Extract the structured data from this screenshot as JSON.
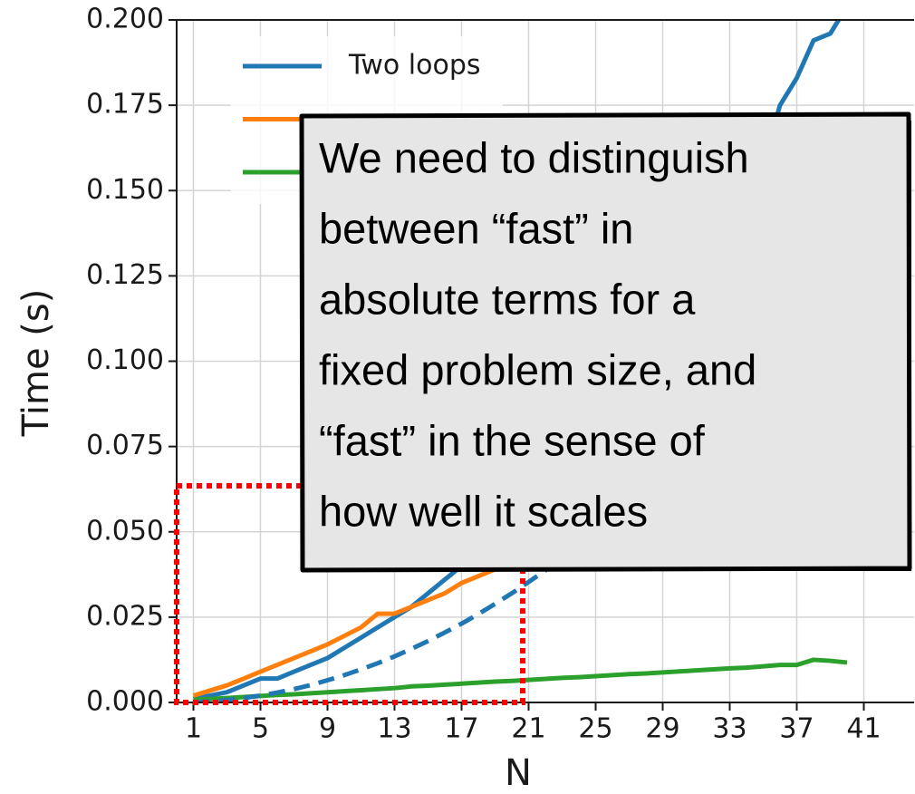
{
  "chart_data": {
    "type": "line",
    "xlabel": "N",
    "ylabel": "Time (s)",
    "x": [
      1,
      2,
      3,
      4,
      5,
      6,
      7,
      8,
      9,
      10,
      11,
      12,
      13,
      14,
      15,
      16,
      17,
      18,
      19,
      20,
      21,
      22,
      23,
      24,
      25,
      26,
      27,
      28,
      29,
      30,
      31,
      32,
      33,
      34,
      35,
      36,
      37,
      38,
      39,
      40
    ],
    "series": [
      {
        "name": "Two loops",
        "color": "#1f77b4",
        "linestyle": "solid",
        "values": [
          0.001,
          0.002,
          0.003,
          0.005,
          0.007,
          0.007,
          0.009,
          0.011,
          0.013,
          0.016,
          0.019,
          0.022,
          0.025,
          0.028,
          0.032,
          0.036,
          0.04,
          0.044,
          0.048,
          0.052,
          0.057,
          0.062,
          0.067,
          0.073,
          0.079,
          0.085,
          0.091,
          0.098,
          0.105,
          0.112,
          0.12,
          0.128,
          0.136,
          0.145,
          0.158,
          0.175,
          0.183,
          0.194,
          0.196,
          0.204
        ]
      },
      {
        "color": "#ff7f0e",
        "linestyle": "solid",
        "values": [
          0.002,
          0.0035,
          0.005,
          0.007,
          0.009,
          0.011,
          0.013,
          0.015,
          0.017,
          0.0195,
          0.022,
          0.026,
          0.026,
          0.028,
          0.03,
          0.032,
          0.035,
          0.037,
          0.039,
          0.041,
          0.043,
          0.045,
          0.047,
          0.049,
          0.051,
          0.053,
          0.055,
          0.057,
          0.059,
          0.061,
          0.063,
          0.065,
          0.067,
          0.069,
          0.071,
          0.073,
          0.075,
          0.077,
          0.079,
          0.081
        ]
      },
      {
        "color": "#2ca02c",
        "linestyle": "solid",
        "values": [
          0.0008,
          0.001,
          0.0013,
          0.0016,
          0.0019,
          0.0022,
          0.0024,
          0.0027,
          0.003,
          0.0033,
          0.0036,
          0.0039,
          0.0042,
          0.0047,
          0.0049,
          0.0052,
          0.0055,
          0.0058,
          0.0061,
          0.0063,
          0.0066,
          0.0069,
          0.0072,
          0.0074,
          0.0077,
          0.008,
          0.0083,
          0.0085,
          0.0088,
          0.0091,
          0.0094,
          0.0097,
          0.01,
          0.0102,
          0.0106,
          0.011,
          0.011,
          0.0125,
          0.0122,
          0.0117
        ]
      },
      {
        "color": "#1f77b4",
        "linestyle": "dashed",
        "values": [
          0.0001,
          0.0003,
          0.0007,
          0.0013,
          0.002,
          0.0029,
          0.0039,
          0.0051,
          0.0065,
          0.008,
          0.0097,
          0.0115,
          0.0135,
          0.0157,
          0.018,
          0.0205,
          0.0231,
          0.0259,
          0.0289,
          0.032,
          0.0353,
          0.0387,
          0.0423,
          0.0461,
          0.05,
          0.0541,
          0.0583,
          0.0627,
          0.0673,
          0.072,
          0.0769,
          0.0819,
          0.0871,
          0.0925,
          0.098,
          0.1037,
          0.1095,
          0.1155,
          0.1217,
          0.128
        ]
      }
    ],
    "xlim": [
      0,
      44
    ],
    "ylim": [
      0,
      0.2
    ],
    "xticks": [
      1,
      5,
      9,
      13,
      17,
      21,
      25,
      29,
      33,
      37,
      41
    ],
    "yticks": [
      {
        "value": 0,
        "label": "0.000"
      },
      {
        "value": 0.025,
        "label": "0.025"
      },
      {
        "value": 0.05,
        "label": "0.050"
      },
      {
        "value": 0.075,
        "label": "0.075"
      },
      {
        "value": 0.1,
        "label": "0.100"
      },
      {
        "value": 0.125,
        "label": "0.125"
      },
      {
        "value": 0.15,
        "label": "0.150"
      },
      {
        "value": 0.175,
        "label": "0.175"
      },
      {
        "value": 0.2,
        "label": "0.200"
      }
    ],
    "grid": true,
    "legend": "upper left",
    "annotation": [
      "We need to distinguish",
      "between “fast” in",
      "absolute terms for a",
      "fixed problem size, and",
      "“fast” in the sense of",
      "how well it scales"
    ]
  }
}
